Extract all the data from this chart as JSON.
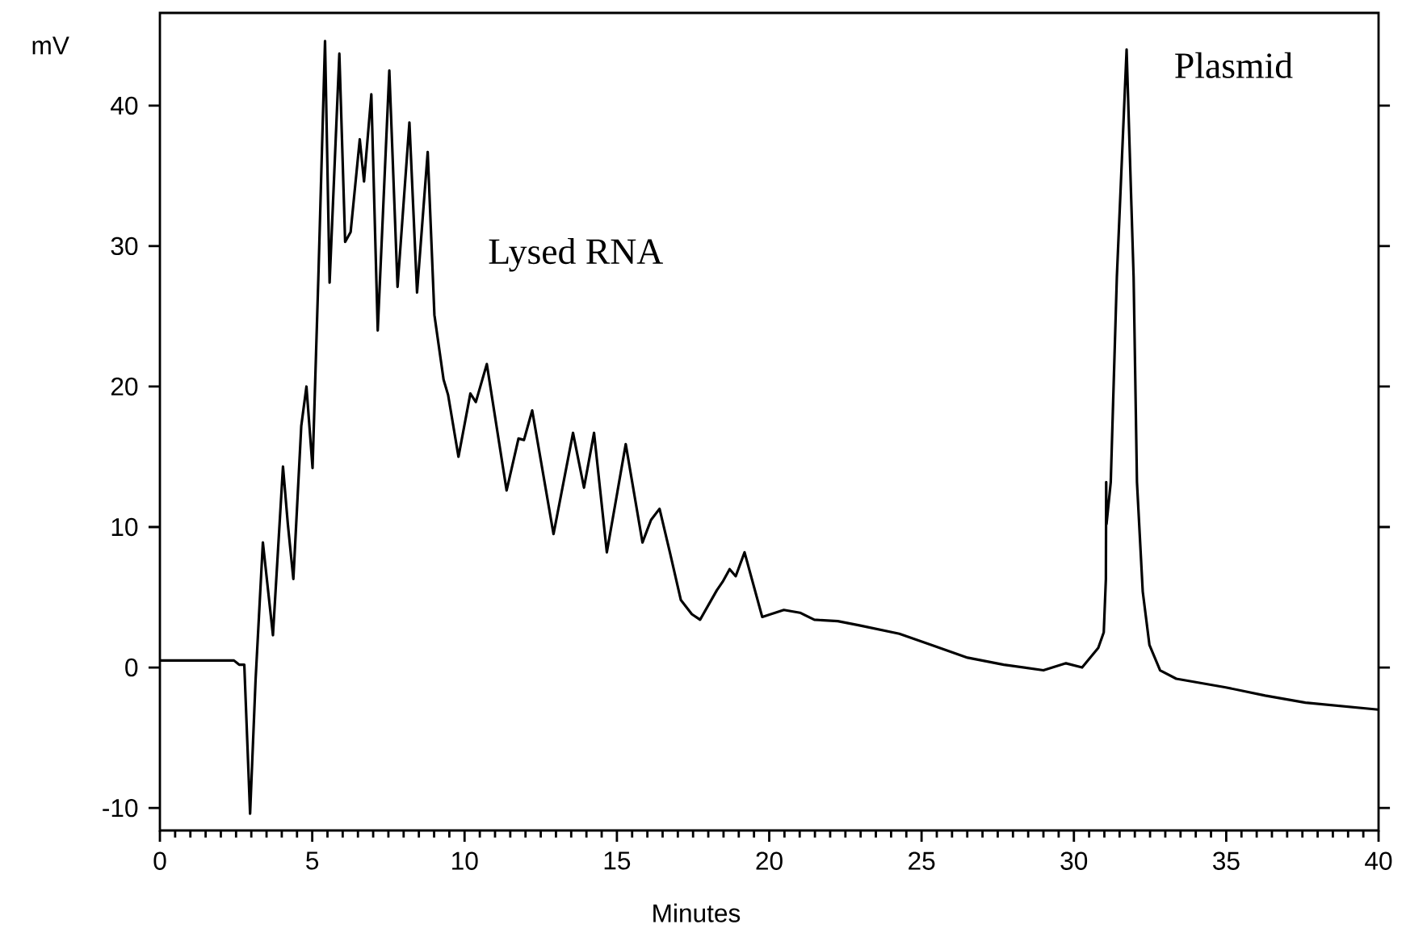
{
  "chart_data": {
    "type": "line",
    "xlabel": "Minutes",
    "ylabel": "mV",
    "xlim": [
      0,
      40
    ],
    "ylim": [
      -11.6,
      46.6
    ],
    "xticks": [
      0,
      5,
      10,
      15,
      20,
      25,
      30,
      35,
      40
    ],
    "yticks": [
      -10,
      0,
      10,
      20,
      30,
      40
    ],
    "grid": false,
    "marker": "none",
    "line_style": "solid",
    "annotations": [
      "Lysed RNA",
      "Plasmid"
    ],
    "series": [
      {
        "color": "#000000",
        "x": [
          0,
          2.0,
          2.43,
          2.6,
          2.77,
          2.96,
          3.14,
          3.38,
          3.71,
          4.04,
          4.2,
          4.38,
          4.64,
          4.81,
          5.01,
          5.2,
          5.42,
          5.57,
          5.89,
          6.08,
          6.26,
          6.56,
          6.7,
          6.94,
          7.15,
          7.53,
          7.8,
          8.19,
          8.44,
          8.79,
          9.01,
          9.31,
          9.46,
          9.8,
          10.19,
          10.37,
          10.73,
          11.38,
          11.77,
          11.95,
          12.22,
          12.92,
          13.56,
          13.92,
          14.25,
          14.67,
          15.29,
          15.84,
          16.12,
          16.4,
          16.75,
          17.1,
          17.46,
          17.73,
          18.28,
          18.47,
          18.7,
          18.9,
          19.19,
          19.77,
          20.48,
          21.01,
          21.48,
          22.25,
          22.96,
          24.27,
          25.33,
          26.51,
          27.7,
          29.0,
          29.74,
          30.27,
          30.8,
          30.98,
          31.05,
          31.06,
          31.07,
          31.21,
          31.41,
          31.73,
          31.96,
          32.07,
          32.26,
          32.48,
          32.83,
          33.36,
          34.95,
          36.28,
          37.6,
          39.99
        ],
        "values": [
          0.5,
          0.5,
          0.5,
          0.2,
          0.2,
          -10.4,
          -0.9,
          8.9,
          2.3,
          14.3,
          10.2,
          6.3,
          17.2,
          20.0,
          14.2,
          27.7,
          44.6,
          27.4,
          43.7,
          30.3,
          31.0,
          37.6,
          34.6,
          40.8,
          24.0,
          42.5,
          27.1,
          38.8,
          26.7,
          36.7,
          25.1,
          20.5,
          19.4,
          15.0,
          19.5,
          18.9,
          21.6,
          12.6,
          16.3,
          16.2,
          18.3,
          9.5,
          16.7,
          12.8,
          16.7,
          8.2,
          15.9,
          8.9,
          10.5,
          11.3,
          8.1,
          4.8,
          3.8,
          3.4,
          5.5,
          6.1,
          7.0,
          6.5,
          8.2,
          3.6,
          4.1,
          3.9,
          3.4,
          3.3,
          3.0,
          2.4,
          1.6,
          0.7,
          0.2,
          -0.2,
          0.3,
          0.0,
          1.4,
          2.5,
          6.3,
          13.2,
          10.2,
          13.2,
          27.8,
          44.0,
          27.8,
          13.2,
          5.4,
          1.6,
          -0.2,
          -0.8,
          -1.4,
          -2.0,
          -2.5,
          -3.0
        ]
      }
    ]
  }
}
